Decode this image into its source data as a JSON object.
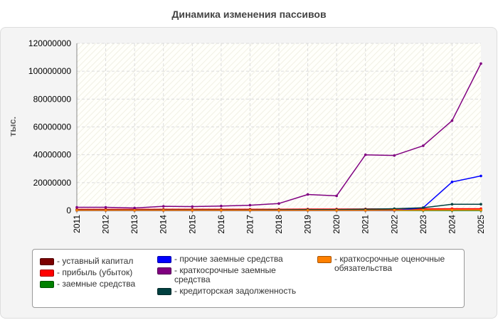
{
  "chart_data": {
    "type": "line",
    "title": "Динамика изменения пассивов",
    "xlabel": "",
    "ylabel": "тыс.",
    "ylim": [
      0,
      120000000
    ],
    "yticks": [
      0,
      20000000,
      40000000,
      60000000,
      80000000,
      100000000,
      120000000
    ],
    "grid": true,
    "legend_position": "bottom",
    "x": [
      "2011",
      "2012",
      "2013",
      "2014",
      "2015",
      "2016",
      "2017",
      "2018",
      "2019",
      "2020",
      "2021",
      "2022",
      "2023",
      "2024",
      "2025"
    ],
    "series": [
      {
        "name": "уставный капитал",
        "color": "#7b0000",
        "values": [
          500000,
          500000,
          500000,
          500000,
          500000,
          500000,
          500000,
          500000,
          500000,
          500000,
          500000,
          500000,
          500000,
          500000,
          500000
        ]
      },
      {
        "name": "прибыль (убыток)",
        "color": "#ff0000",
        "values": [
          800000,
          800000,
          800000,
          900000,
          900000,
          900000,
          900000,
          900000,
          1000000,
          1000000,
          1100000,
          1100000,
          1200000,
          1300000,
          1300000
        ]
      },
      {
        "name": "заемные средства",
        "color": "#008000",
        "values": [
          0,
          0,
          0,
          0,
          0,
          0,
          0,
          0,
          0,
          0,
          0,
          0,
          0,
          0,
          0
        ]
      },
      {
        "name": "прочие заемные средства",
        "color": "#0000ff",
        "values": [
          0,
          0,
          0,
          0,
          0,
          0,
          0,
          0,
          0,
          0,
          0,
          0,
          2000000,
          20500000,
          24800000
        ]
      },
      {
        "name": "краткосрочные заемные средства",
        "color": "#800080",
        "values": [
          2300000,
          2300000,
          1800000,
          3000000,
          2800000,
          3200000,
          3800000,
          5000000,
          11500000,
          10500000,
          40000000,
          39500000,
          46500000,
          64500000,
          105500000
        ]
      },
      {
        "name": "кредиторская задолженность",
        "color": "#004040",
        "values": [
          300000,
          300000,
          300000,
          400000,
          400000,
          400000,
          400000,
          500000,
          600000,
          600000,
          900000,
          1300000,
          2000000,
          4500000,
          4500000
        ]
      },
      {
        "name": "краткосрочные оценочные обязательства",
        "color": "#ff8000",
        "values": [
          100000,
          100000,
          100000,
          100000,
          100000,
          100000,
          100000,
          100000,
          100000,
          100000,
          100000,
          200000,
          300000,
          400000,
          400000
        ]
      }
    ]
  }
}
